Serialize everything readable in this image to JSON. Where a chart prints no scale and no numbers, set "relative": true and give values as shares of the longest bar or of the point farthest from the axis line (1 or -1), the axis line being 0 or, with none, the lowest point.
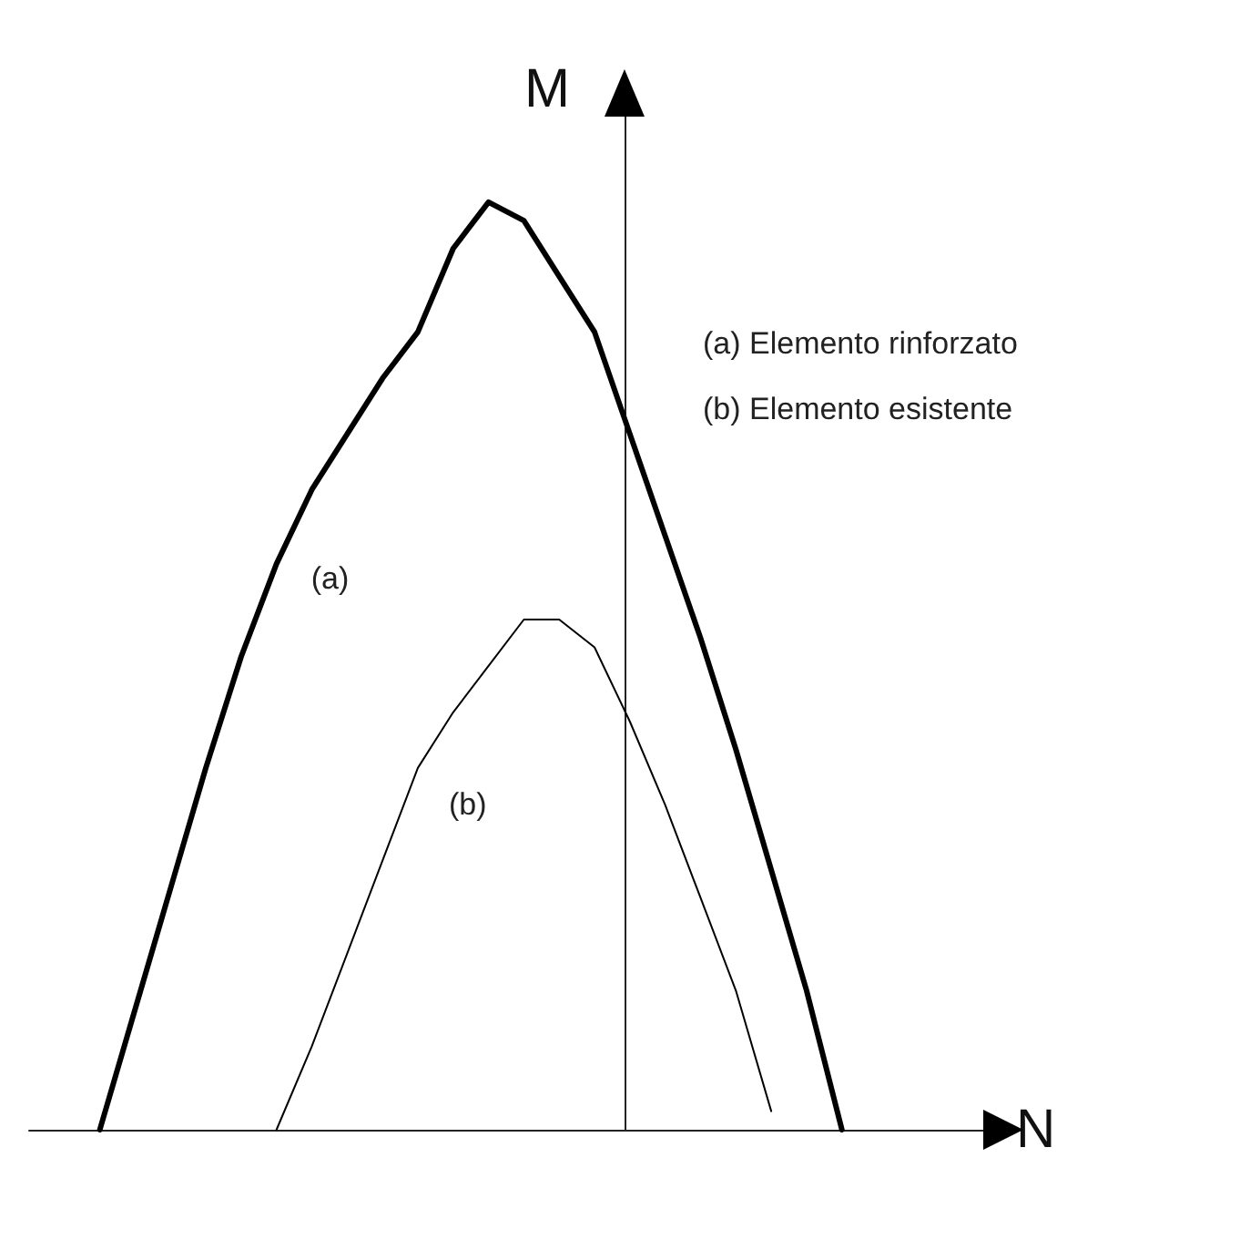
{
  "chart_data": {
    "type": "line",
    "relative": true,
    "xlabel": "N",
    "ylabel": "M",
    "marker": "none",
    "legend": false,
    "grid": false,
    "categories": [
      null,
      null,
      null,
      null,
      null,
      null,
      null,
      null,
      null,
      null,
      null,
      null,
      null,
      null,
      null,
      null,
      null,
      null,
      null,
      null,
      null,
      null,
      null,
      null,
      null,
      null,
      null,
      null
    ],
    "series": [
      {
        "name": "(a)",
        "color": "#000000",
        "values": [
          null,
          null,
          0,
          0.13,
          0.26,
          0.39,
          0.51,
          0.61,
          0.69,
          0.75,
          0.81,
          0.86,
          0.95,
          1,
          0.98,
          0.92,
          0.86,
          0.75,
          0.64,
          0.53,
          0.41,
          0.28,
          0.15,
          0,
          null,
          null,
          null,
          null
        ]
      },
      {
        "name": "(b)",
        "color": "#000000",
        "values": [
          null,
          null,
          null,
          null,
          null,
          null,
          null,
          0,
          0.09,
          0.19,
          0.29,
          0.39,
          0.45,
          0.5,
          0.55,
          0.55,
          0.52,
          0.44,
          0.35,
          0.25,
          0.15,
          0.02,
          null,
          null,
          null,
          null,
          null,
          null
        ]
      }
    ],
    "annotations": [
      "(a) Elemento rinforzato",
      "(b) Elemento esistente"
    ]
  }
}
